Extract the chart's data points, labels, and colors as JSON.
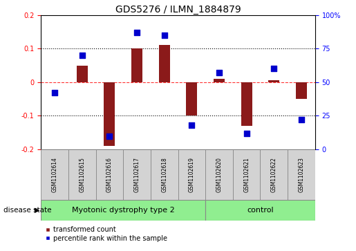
{
  "title": "GDS5276 / ILMN_1884879",
  "samples": [
    "GSM1102614",
    "GSM1102615",
    "GSM1102616",
    "GSM1102617",
    "GSM1102618",
    "GSM1102619",
    "GSM1102620",
    "GSM1102621",
    "GSM1102622",
    "GSM1102623"
  ],
  "red_values": [
    0.0,
    0.05,
    -0.19,
    0.1,
    0.11,
    -0.1,
    0.01,
    -0.13,
    0.005,
    -0.05
  ],
  "blue_values": [
    42,
    70,
    10,
    87,
    85,
    18,
    57,
    12,
    60,
    22
  ],
  "ylim_left": [
    -0.2,
    0.2
  ],
  "ylim_right": [
    0,
    100
  ],
  "yticks_left": [
    -0.2,
    -0.1,
    0.0,
    0.1,
    0.2
  ],
  "yticks_right": [
    0,
    25,
    50,
    75,
    100
  ],
  "group1_label": "Myotonic dystrophy type 2",
  "group1_count": 6,
  "group2_label": "control",
  "group2_count": 4,
  "group_color": "#90EE90",
  "sample_box_color": "#D3D3D3",
  "disease_state_label": "disease state",
  "bar_color": "#8B1A1A",
  "dot_color": "#0000CD",
  "bar_width": 0.4,
  "dot_size": 40,
  "legend_items": [
    "transformed count",
    "percentile rank within the sample"
  ],
  "title_fontsize": 10,
  "tick_fontsize": 7,
  "sample_fontsize": 5.5,
  "group_fontsize": 8,
  "legend_fontsize": 7,
  "ds_label_fontsize": 7.5
}
